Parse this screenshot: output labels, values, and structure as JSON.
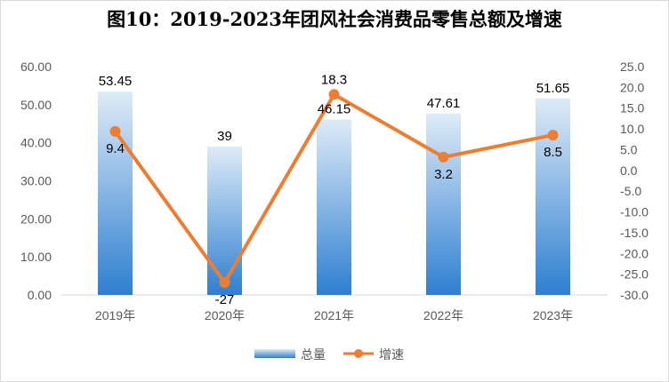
{
  "chart_data": {
    "type": "bar",
    "title": "图10：2019-2023年团风社会消费品零售总额及增速",
    "categories": [
      "2019年",
      "2020年",
      "2021年",
      "2022年",
      "2023年"
    ],
    "series": [
      {
        "name": "总量",
        "type": "bar",
        "axis": "left",
        "values": [
          53.45,
          39,
          46.15,
          47.61,
          51.65
        ],
        "labels": [
          "53.45",
          "39",
          "46.15",
          "47.61",
          "51.65"
        ]
      },
      {
        "name": "增速",
        "type": "line",
        "axis": "right",
        "values": [
          9.4,
          -27,
          18.3,
          3.2,
          8.5
        ],
        "labels": [
          "9.4",
          "-27",
          "18.3",
          "3.2",
          "8.5"
        ]
      }
    ],
    "y_left": {
      "min": 0,
      "max": 60,
      "ticks": [
        "0.00",
        "10.00",
        "20.00",
        "30.00",
        "40.00",
        "50.00",
        "60.00"
      ]
    },
    "y_right": {
      "min": -30,
      "max": 25,
      "ticks": [
        "-30.0",
        "-25.0",
        "-20.0",
        "-15.0",
        "-10.0",
        "-5.0",
        "0.0",
        "5.0",
        "10.0",
        "15.0",
        "20.0",
        "25.0"
      ]
    },
    "grid": false,
    "legend_position": "bottom",
    "colors": {
      "bar_top": "#deebf7",
      "bar_bottom": "#2e7fd0",
      "line": "#ed7d31",
      "axis": "#d9d9d9"
    }
  }
}
